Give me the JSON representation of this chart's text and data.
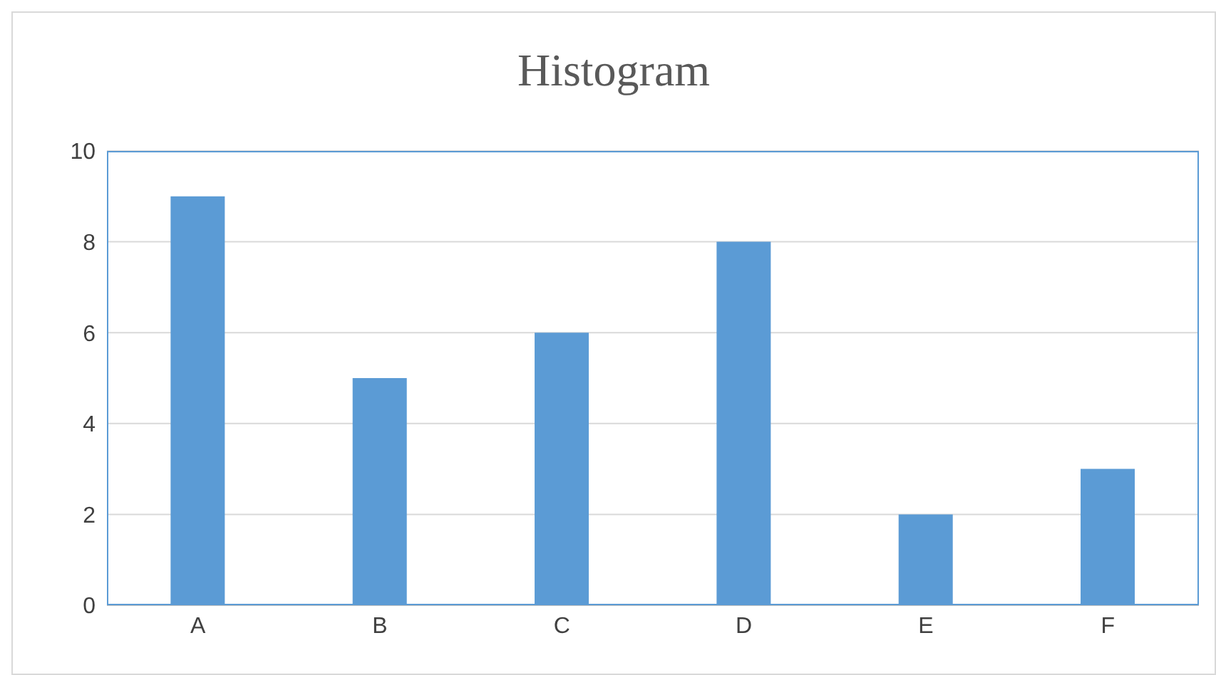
{
  "chart_data": {
    "type": "bar",
    "title": "Histogram",
    "categories": [
      "A",
      "B",
      "C",
      "D",
      "E",
      "F"
    ],
    "values": [
      9,
      5,
      6,
      8,
      2,
      3
    ],
    "color": "#5b9bd5",
    "ylim": [
      0,
      10
    ],
    "yticks": [
      0,
      2,
      4,
      6,
      8,
      10
    ],
    "grid": "y"
  }
}
